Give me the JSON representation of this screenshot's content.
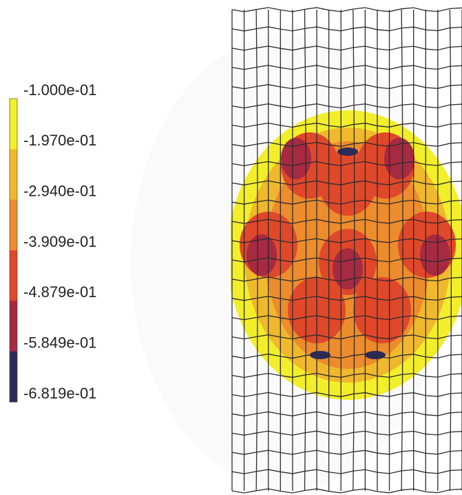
{
  "legend": {
    "labels": [
      "-1.000e-01",
      "-1.970e-01",
      "-2.940e-01",
      "-3.909e-01",
      "-4.879e-01",
      "-5.849e-01",
      "-6.819e-01"
    ],
    "colors": [
      "#f2ee2a",
      "#f0b82c",
      "#ec8c2c",
      "#e0482a",
      "#a62a40",
      "#2a2c5c"
    ]
  }
}
